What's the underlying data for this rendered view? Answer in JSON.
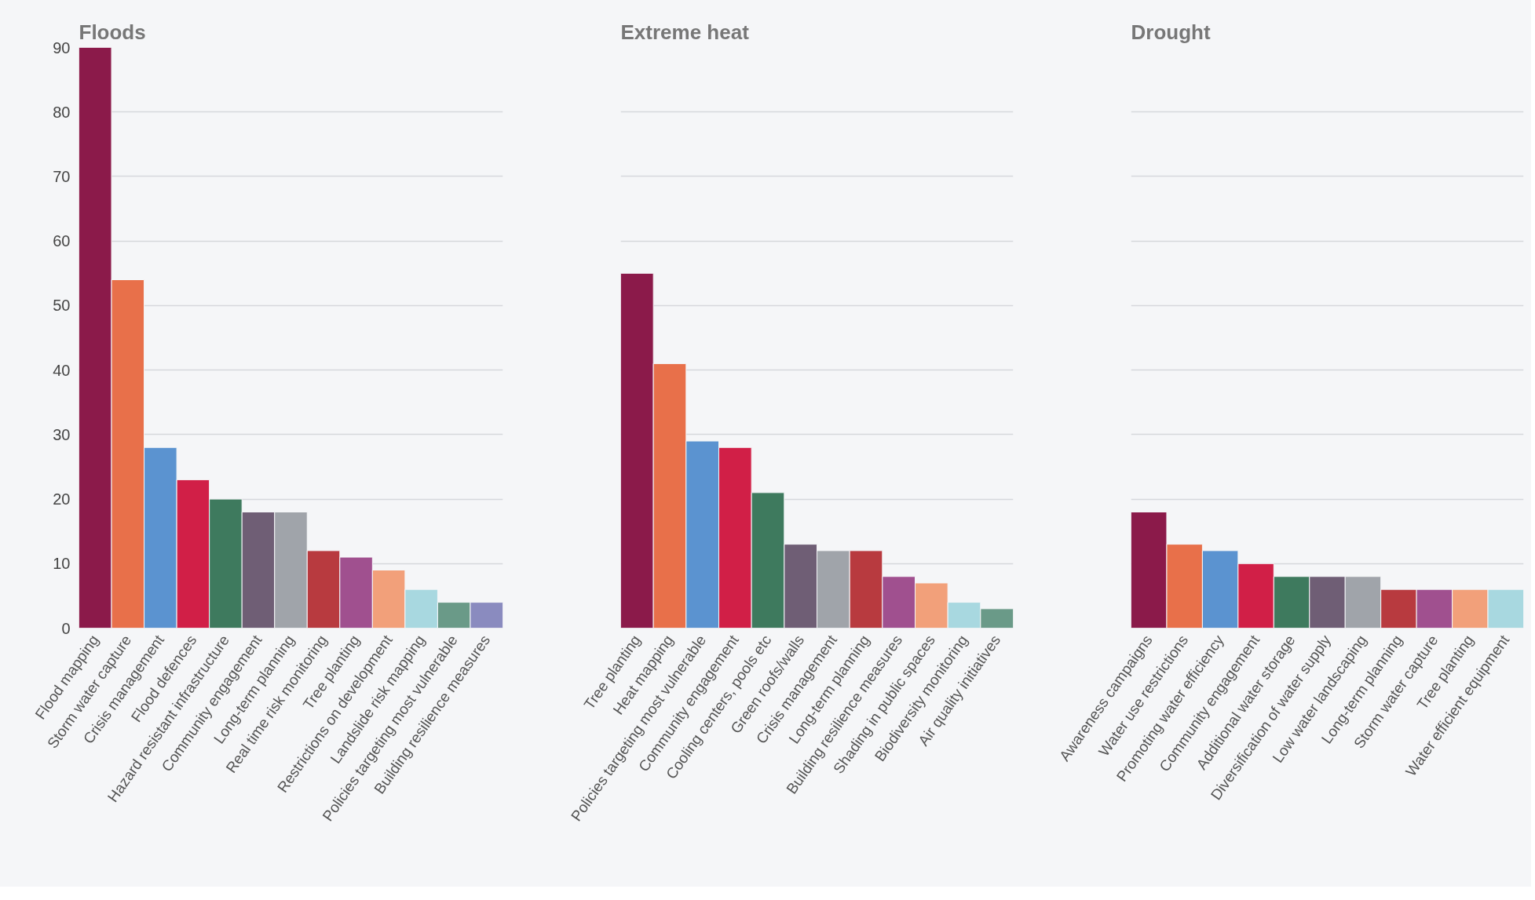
{
  "chart_data": [
    {
      "type": "bar",
      "title": "Floods",
      "categories": [
        "Flood mapping",
        "Storm water capture",
        "Crisis management",
        "Flood defences",
        "Hazard resistant infrastructure",
        "Community engagement",
        "Long-term planning",
        "Real time risk monitoring",
        "Tree planting",
        "Restrictions on development",
        "Landslide risk mapping",
        "Policies targeting most vulnerable",
        "Building resilience measures"
      ],
      "values": [
        90,
        54,
        28,
        23,
        20,
        18,
        18,
        12,
        11,
        9,
        6,
        4,
        4
      ],
      "colors": [
        "#8b1a4a",
        "#e8704a",
        "#5b93d0",
        "#d11f47",
        "#3e7a5e",
        "#6f5e75",
        "#a0a4aa",
        "#b83a3f",
        "#a0508f",
        "#f2a07a",
        "#a8d8e0",
        "#6a9a88",
        "#8a8bbf"
      ],
      "ylim": [
        0,
        90
      ],
      "yticks": [
        0,
        10,
        20,
        30,
        40,
        50,
        60,
        70,
        80,
        90
      ],
      "grid": "y"
    },
    {
      "type": "bar",
      "title": "Extreme heat",
      "categories": [
        "Tree planting",
        "Heat mapping",
        "Policies targeting most vulnerable",
        "Community engagement",
        "Cooling centers, pools etc",
        "Green roofs/walls",
        "Crisis management",
        "Long-term planning",
        "Building resilience measures",
        "Shading in public spaces",
        "Biodiversity monitoring",
        "Air quality initiatives"
      ],
      "values": [
        55,
        41,
        29,
        28,
        21,
        13,
        12,
        12,
        8,
        7,
        4,
        3
      ],
      "colors": [
        "#8b1a4a",
        "#e8704a",
        "#5b93d0",
        "#d11f47",
        "#3e7a5e",
        "#6f5e75",
        "#a0a4aa",
        "#b83a3f",
        "#a0508f",
        "#f2a07a",
        "#a8d8e0",
        "#6a9a88"
      ],
      "ylim": [
        0,
        90
      ],
      "yticks": [
        0,
        10,
        20,
        30,
        40,
        50,
        60,
        70,
        80,
        90
      ],
      "grid": "y",
      "tick_labels": "x"
    },
    {
      "type": "bar",
      "title": "Drought",
      "categories": [
        "Awareness campaigns",
        "Water use restrictions",
        "Promoting water efficiency",
        "Community engagement",
        "Additional water storage",
        "Diversification of water supply",
        "Low water landscaping",
        "Long-term planning",
        "Storm water capture",
        "Tree planting",
        "Water efficient equipment"
      ],
      "values": [
        18,
        13,
        12,
        10,
        8,
        8,
        8,
        6,
        6,
        6,
        6
      ],
      "colors": [
        "#8b1a4a",
        "#e8704a",
        "#5b93d0",
        "#d11f47",
        "#3e7a5e",
        "#6f5e75",
        "#a0a4aa",
        "#b83a3f",
        "#a0508f",
        "#f2a07a",
        "#a8d8e0"
      ],
      "ylim": [
        0,
        90
      ],
      "yticks": [
        0,
        10,
        20,
        30,
        40,
        50,
        60,
        70,
        80,
        90
      ],
      "grid": "y",
      "tick_labels": "x"
    }
  ]
}
